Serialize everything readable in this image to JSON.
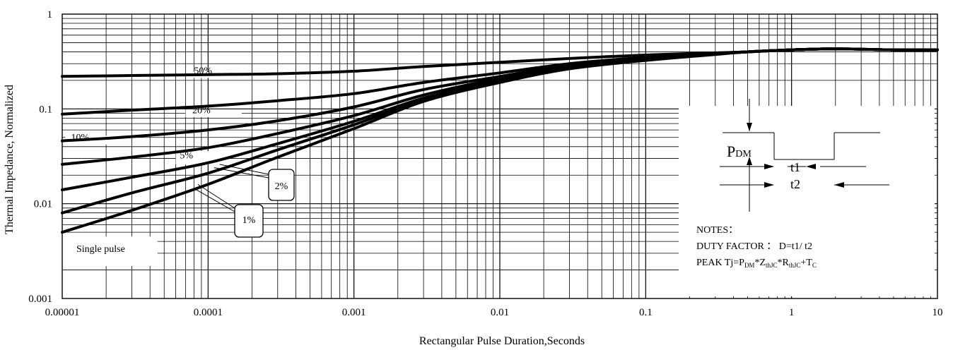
{
  "chart_data": {
    "type": "line",
    "xscale": "log",
    "yscale": "log",
    "xlim": [
      1e-05,
      10
    ],
    "ylim": [
      0.001,
      1
    ],
    "xlabel": "Rectangular Pulse Duration,Seconds",
    "ylabel": "Thermal Impedance, Normalized",
    "x_ticks": [
      "0.00001",
      "0.0001",
      "0.001",
      "0.01",
      "0.1",
      "1",
      "10"
    ],
    "y_ticks": [
      "1",
      "0.1",
      "0.01",
      "0.001"
    ],
    "grid": true,
    "series": [
      {
        "name": "50%",
        "x": [
          1e-05,
          3e-05,
          0.0001,
          0.0003,
          0.001,
          0.003,
          0.01,
          0.03,
          0.1,
          0.3,
          0.5,
          1,
          2,
          5,
          10
        ],
        "y": [
          0.22,
          0.225,
          0.23,
          0.235,
          0.25,
          0.28,
          0.31,
          0.34,
          0.37,
          0.39,
          0.4,
          0.42,
          0.43,
          0.42,
          0.42
        ]
      },
      {
        "name": "20%",
        "x": [
          1e-05,
          3e-05,
          0.0001,
          0.0003,
          0.001,
          0.003,
          0.01,
          0.03,
          0.1,
          0.3,
          0.5,
          1,
          2,
          5,
          10
        ],
        "y": [
          0.088,
          0.097,
          0.107,
          0.122,
          0.145,
          0.19,
          0.24,
          0.3,
          0.35,
          0.385,
          0.4,
          0.42,
          0.43,
          0.42,
          0.42
        ]
      },
      {
        "name": "10%",
        "x": [
          1e-05,
          3e-05,
          0.0001,
          0.0003,
          0.001,
          0.003,
          0.01,
          0.03,
          0.1,
          0.3,
          0.5,
          1,
          2,
          5,
          10
        ],
        "y": [
          0.046,
          0.051,
          0.06,
          0.075,
          0.105,
          0.16,
          0.22,
          0.29,
          0.345,
          0.385,
          0.4,
          0.42,
          0.43,
          0.42,
          0.42
        ]
      },
      {
        "name": "5%",
        "x": [
          1e-05,
          3e-05,
          0.0001,
          0.0003,
          0.001,
          0.003,
          0.01,
          0.03,
          0.1,
          0.3,
          0.5,
          1,
          2,
          5,
          10
        ],
        "y": [
          0.026,
          0.031,
          0.039,
          0.055,
          0.085,
          0.14,
          0.21,
          0.28,
          0.34,
          0.38,
          0.4,
          0.42,
          0.43,
          0.42,
          0.42
        ]
      },
      {
        "name": "2%",
        "x": [
          1e-05,
          3e-05,
          0.0001,
          0.0003,
          0.001,
          0.003,
          0.01,
          0.03,
          0.1,
          0.3,
          0.5,
          1,
          2,
          5,
          10
        ],
        "y": [
          0.014,
          0.019,
          0.027,
          0.043,
          0.074,
          0.13,
          0.2,
          0.275,
          0.335,
          0.38,
          0.4,
          0.42,
          0.43,
          0.42,
          0.42
        ]
      },
      {
        "name": "1%",
        "x": [
          1e-05,
          3e-05,
          0.0001,
          0.0003,
          0.001,
          0.003,
          0.01,
          0.03,
          0.1,
          0.3,
          0.5,
          1,
          2,
          5,
          10
        ],
        "y": [
          0.008,
          0.013,
          0.021,
          0.037,
          0.068,
          0.125,
          0.195,
          0.27,
          0.33,
          0.38,
          0.4,
          0.42,
          0.43,
          0.42,
          0.42
        ]
      },
      {
        "name": "Single pulse",
        "x": [
          1e-05,
          3e-05,
          0.0001,
          0.0003,
          0.001,
          0.003,
          0.01,
          0.03,
          0.1,
          0.3,
          0.5,
          1,
          2,
          5,
          10
        ],
        "y": [
          0.005,
          0.0085,
          0.016,
          0.031,
          0.062,
          0.12,
          0.19,
          0.265,
          0.325,
          0.375,
          0.4,
          0.42,
          0.43,
          0.42,
          0.42
        ]
      }
    ],
    "inset": {
      "pdm_label": "P",
      "pdm_sub": "DM",
      "t1_label": "t1",
      "t2_label": "t2",
      "notes_title": "NOTES：",
      "duty_factor": "DUTY FACTOR ： D=t1/ t2",
      "peak_parts": [
        {
          "t": "PEAK Tj=P",
          "sub": false
        },
        {
          "t": "DM",
          "sub": true
        },
        {
          "t": "*Z",
          "sub": false
        },
        {
          "t": "thJC",
          "sub": true
        },
        {
          "t": "*R",
          "sub": false
        },
        {
          "t": "thJC",
          "sub": true
        },
        {
          "t": "+T",
          "sub": false
        },
        {
          "t": "C",
          "sub": true
        }
      ]
    },
    "colors": {
      "line": "#000000",
      "grid": "#000000",
      "background": "#ffffff"
    }
  }
}
